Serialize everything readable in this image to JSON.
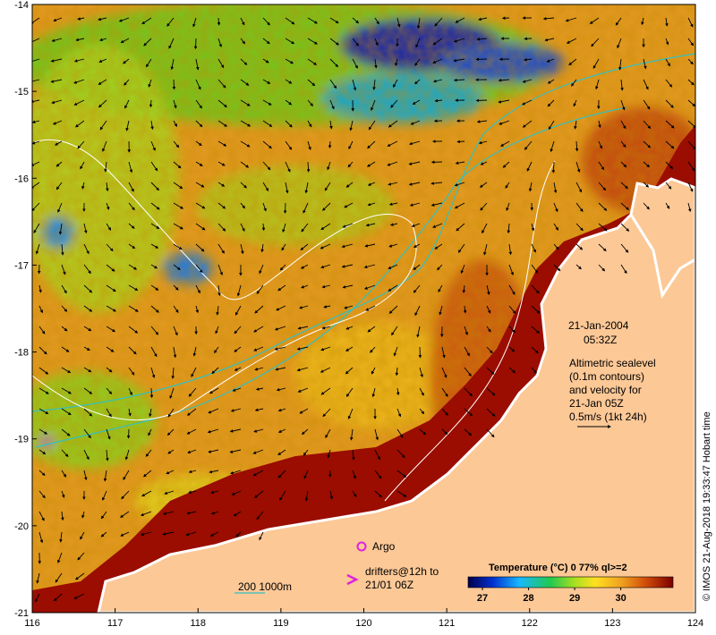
{
  "date": "21-Jan-2004",
  "time": "05:32Z",
  "note_lines": [
    "Altimetric sealevel",
    "(0.1m contours)",
    "and velocity for",
    "21-Jan 05Z",
    "0.5m/s (1kt 24h)"
  ],
  "argo_label": "Argo",
  "drifters_lines": [
    "drifters@12h to",
    "21/01 06Z"
  ],
  "depth_label": "200  1000m",
  "colorbar_title": "Temperature (°C) 0 77% ql>=2",
  "colorbar_ticks": [
    {
      "value": "27",
      "pos": 0.07
    },
    {
      "value": "28",
      "pos": 0.295
    },
    {
      "value": "29",
      "pos": 0.52
    },
    {
      "value": "30",
      "pos": 0.745
    }
  ],
  "credit": "© IMOS 21-Aug-2018 19:33:47 Hobart time",
  "x_ticks": [
    "116",
    "117",
    "118",
    "119",
    "120",
    "121",
    "122",
    "123",
    "124"
  ],
  "y_ticks": [
    "-14",
    "-15",
    "-16",
    "-17",
    "-18",
    "-19",
    "-20",
    "-21"
  ],
  "colors": {
    "land": "#fcc896",
    "warm": "#9a0d00",
    "orange": "#e08a1a",
    "green": "#50c81e",
    "blue": "#1e3cc8",
    "magenta": "#e020e0",
    "cyan": "#33c0c0"
  }
}
